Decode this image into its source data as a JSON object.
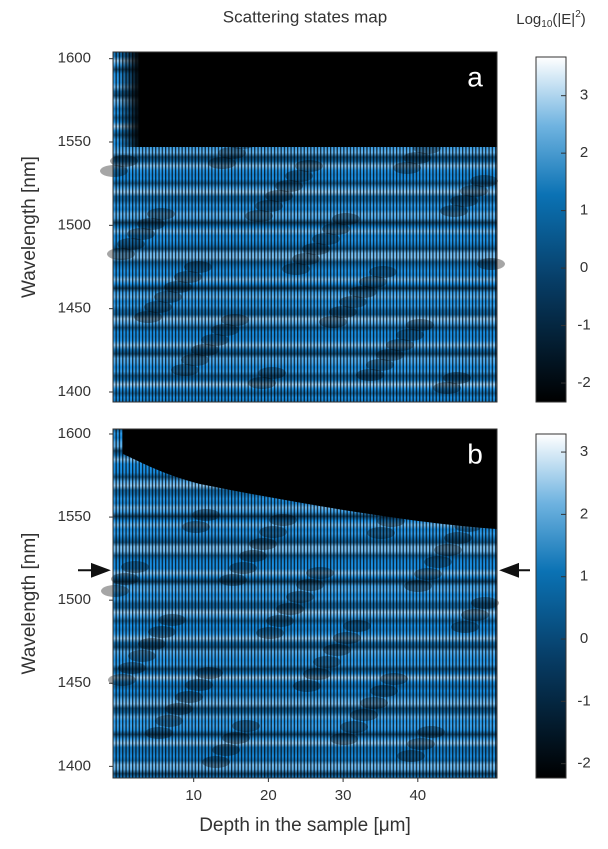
{
  "chart_data": [
    {
      "type": "heatmap",
      "title": "Scattering states map",
      "panel_label": "a",
      "ylabel": "Wavelength [nm]",
      "xlim": [
        -0.8,
        50.6
      ],
      "ylim": [
        1394,
        1604
      ],
      "yticks": [
        1400,
        1450,
        1500,
        1550,
        1600
      ],
      "colorbar_label": {
        "base": "Log",
        "sub": "10",
        "mid": "(|E|",
        "sup": "2",
        "end": ")"
      },
      "clim": [
        -2.33,
        3.76
      ],
      "cticks": [
        -2,
        -1,
        0,
        1,
        2,
        3
      ]
    },
    {
      "type": "heatmap",
      "panel_label": "b",
      "ylabel": "Wavelength [nm]",
      "xlabel": "Depth in the sample [μm]",
      "xlim": [
        -0.8,
        50.6
      ],
      "ylim": [
        1393,
        1603
      ],
      "xticks": [
        10,
        20,
        30,
        40
      ],
      "yticks": [
        1400,
        1450,
        1500,
        1550,
        1600
      ],
      "clim": [
        -2.23,
        3.37
      ],
      "cticks": [
        -2,
        -1,
        0,
        1,
        2,
        3
      ],
      "arrow_wavelength": 1518
    }
  ]
}
